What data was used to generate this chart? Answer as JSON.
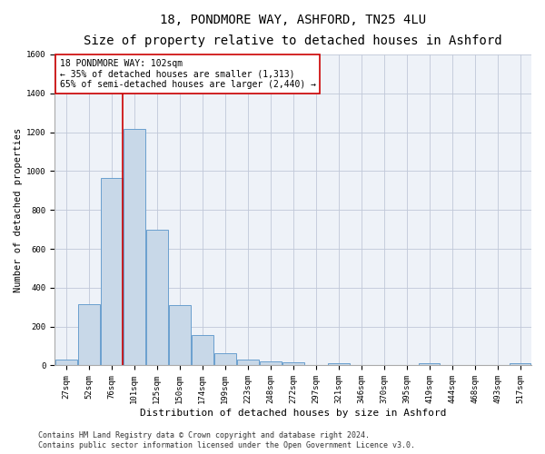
{
  "title_line1": "18, PONDMORE WAY, ASHFORD, TN25 4LU",
  "title_line2": "Size of property relative to detached houses in Ashford",
  "xlabel": "Distribution of detached houses by size in Ashford",
  "ylabel": "Number of detached properties",
  "bar_labels": [
    "27sqm",
    "52sqm",
    "76sqm",
    "101sqm",
    "125sqm",
    "150sqm",
    "174sqm",
    "199sqm",
    "223sqm",
    "248sqm",
    "272sqm",
    "297sqm",
    "321sqm",
    "346sqm",
    "370sqm",
    "395sqm",
    "419sqm",
    "444sqm",
    "468sqm",
    "493sqm",
    "517sqm"
  ],
  "bar_heights": [
    30,
    315,
    965,
    1215,
    700,
    310,
    155,
    65,
    30,
    20,
    15,
    0,
    10,
    0,
    0,
    0,
    10,
    0,
    0,
    0,
    10
  ],
  "bar_color": "#c8d8e8",
  "bar_edge_color": "#6a9fcf",
  "property_bin_index": 3,
  "vline_color": "#cc0000",
  "annotation_text": "18 PONDMORE WAY: 102sqm\n← 35% of detached houses are smaller (1,313)\n65% of semi-detached houses are larger (2,440) →",
  "annotation_box_color": "#ffffff",
  "annotation_box_edge_color": "#cc0000",
  "ylim": [
    0,
    1600
  ],
  "yticks": [
    0,
    200,
    400,
    600,
    800,
    1000,
    1200,
    1400,
    1600
  ],
  "grid_color": "#c0c8d8",
  "background_color": "#eef2f8",
  "footer_line1": "Contains HM Land Registry data © Crown copyright and database right 2024.",
  "footer_line2": "Contains public sector information licensed under the Open Government Licence v3.0.",
  "title_fontsize": 10,
  "subtitle_fontsize": 8.5,
  "xlabel_fontsize": 8,
  "ylabel_fontsize": 7.5,
  "tick_fontsize": 6.5,
  "annotation_fontsize": 7,
  "footer_fontsize": 6
}
